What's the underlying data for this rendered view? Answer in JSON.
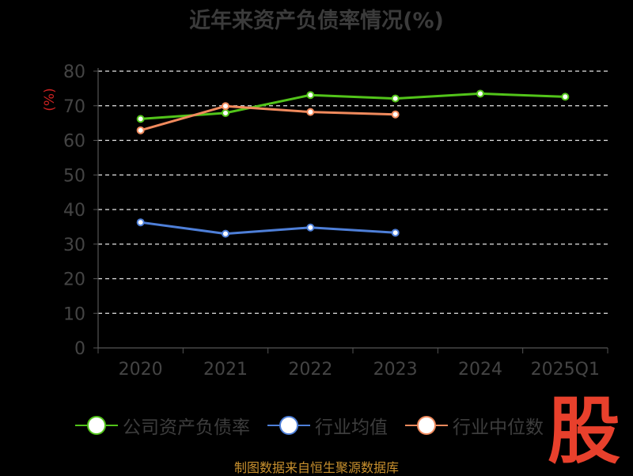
{
  "chart_data": {
    "type": "line",
    "title": "近年来资产负债率情况(%)",
    "ylabel": "(%)",
    "xlabel": "",
    "categories": [
      "2020",
      "2021",
      "2022",
      "2023",
      "2024",
      "2025Q1"
    ],
    "ylim": [
      0,
      80
    ],
    "yticks": [
      0,
      10,
      20,
      30,
      40,
      50,
      60,
      70,
      80
    ],
    "grid": true,
    "grid_style": "dashed",
    "legend_position": "bottom",
    "series": [
      {
        "name": "公司资产负债率",
        "color": "#52c41a",
        "values": [
          66.2,
          67.9,
          73.1,
          72.1,
          73.5,
          72.6
        ]
      },
      {
        "name": "行业均值",
        "color": "#4e7fd8",
        "values": [
          36.3,
          33.0,
          34.8,
          33.3,
          null,
          null
        ]
      },
      {
        "name": "行业中位数",
        "color": "#f08a5d",
        "values": [
          62.9,
          69.9,
          68.2,
          67.5,
          null,
          null
        ]
      }
    ]
  },
  "source_text": "制图数据来自恒生聚源数据库",
  "watermark_text": "股"
}
